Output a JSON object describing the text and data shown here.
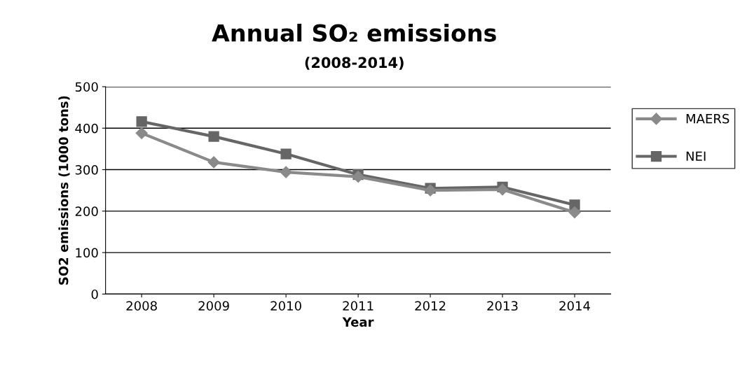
{
  "chart_data": {
    "type": "line",
    "title": "Annual SO₂ emissions",
    "subtitle": "(2008-2014)",
    "xlabel": "Year",
    "ylabel": "SO2 emissions (1000 tons)",
    "categories": [
      "2008",
      "2009",
      "2010",
      "2011",
      "2012",
      "2013",
      "2014"
    ],
    "series": [
      {
        "name": "MAERS",
        "color": "#8a8a8a",
        "marker": "diamond",
        "values": [
          388,
          318,
          294,
          283,
          250,
          252,
          197
        ]
      },
      {
        "name": "NEI",
        "color": "#666666",
        "marker": "square",
        "values": [
          416,
          380,
          338,
          288,
          255,
          258,
          215
        ]
      }
    ],
    "ylim": [
      0,
      500
    ],
    "yticks": [
      0,
      100,
      200,
      300,
      400,
      500
    ],
    "grid": "y",
    "legend": "right",
    "line_style": "solid"
  }
}
